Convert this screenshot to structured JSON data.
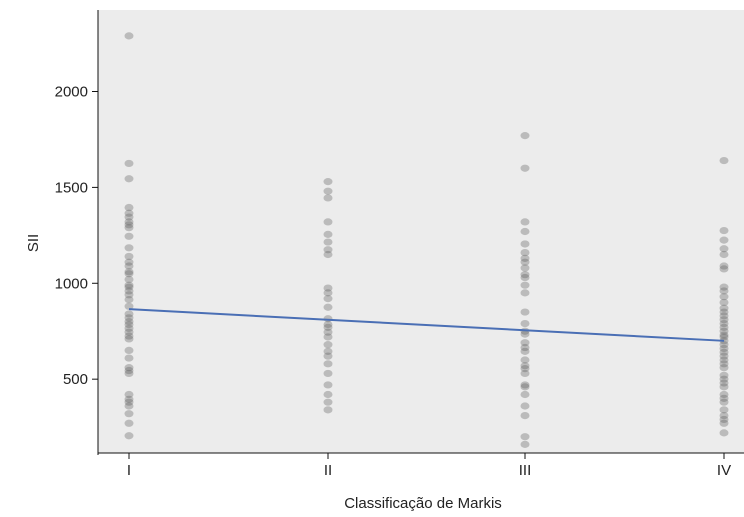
{
  "chart_data": {
    "type": "scatter",
    "xlabel": "Classificação de Markis",
    "ylabel": "SII",
    "categories": [
      "I",
      "II",
      "III",
      "IV"
    ],
    "y_ticks": [
      500,
      1000,
      1500,
      2000
    ],
    "ylim": [
      115,
      2425
    ],
    "grid": false,
    "colors": {
      "panel": "#ececec",
      "point": "#555555",
      "trend": "#4a6fb5"
    },
    "points": [
      {
        "group": "I",
        "values": [
          2290,
          1625,
          1545,
          1395,
          1365,
          1345,
          1320,
          1305,
          1290,
          1245,
          1185,
          1140,
          1110,
          1090,
          1060,
          1050,
          1020,
          990,
          980,
          960,
          940,
          915,
          880,
          840,
          820,
          800,
          785,
          765,
          745,
          725,
          710,
          650,
          610,
          560,
          545,
          530,
          420,
          395,
          380,
          360,
          320,
          270,
          205
        ]
      },
      {
        "group": "II",
        "values": [
          1530,
          1480,
          1445,
          1320,
          1255,
          1215,
          1175,
          1150,
          975,
          950,
          920,
          875,
          815,
          785,
          770,
          745,
          720,
          680,
          645,
          620,
          580,
          530,
          470,
          420,
          380,
          340
        ]
      },
      {
        "group": "III",
        "values": [
          1770,
          1600,
          1320,
          1270,
          1205,
          1160,
          1130,
          1110,
          1080,
          1045,
          1030,
          990,
          950,
          850,
          790,
          750,
          735,
          690,
          665,
          645,
          600,
          570,
          555,
          530,
          470,
          460,
          420,
          360,
          310,
          200,
          160
        ]
      },
      {
        "group": "IV",
        "values": [
          1640,
          1275,
          1225,
          1180,
          1150,
          1090,
          1075,
          980,
          960,
          930,
          900,
          870,
          850,
          830,
          810,
          790,
          770,
          750,
          730,
          720,
          700,
          680,
          660,
          640,
          620,
          600,
          580,
          560,
          520,
          500,
          480,
          460,
          420,
          400,
          380,
          340,
          310,
          290,
          270,
          220
        ]
      }
    ],
    "trend": {
      "start": 865,
      "end": 700
    }
  }
}
